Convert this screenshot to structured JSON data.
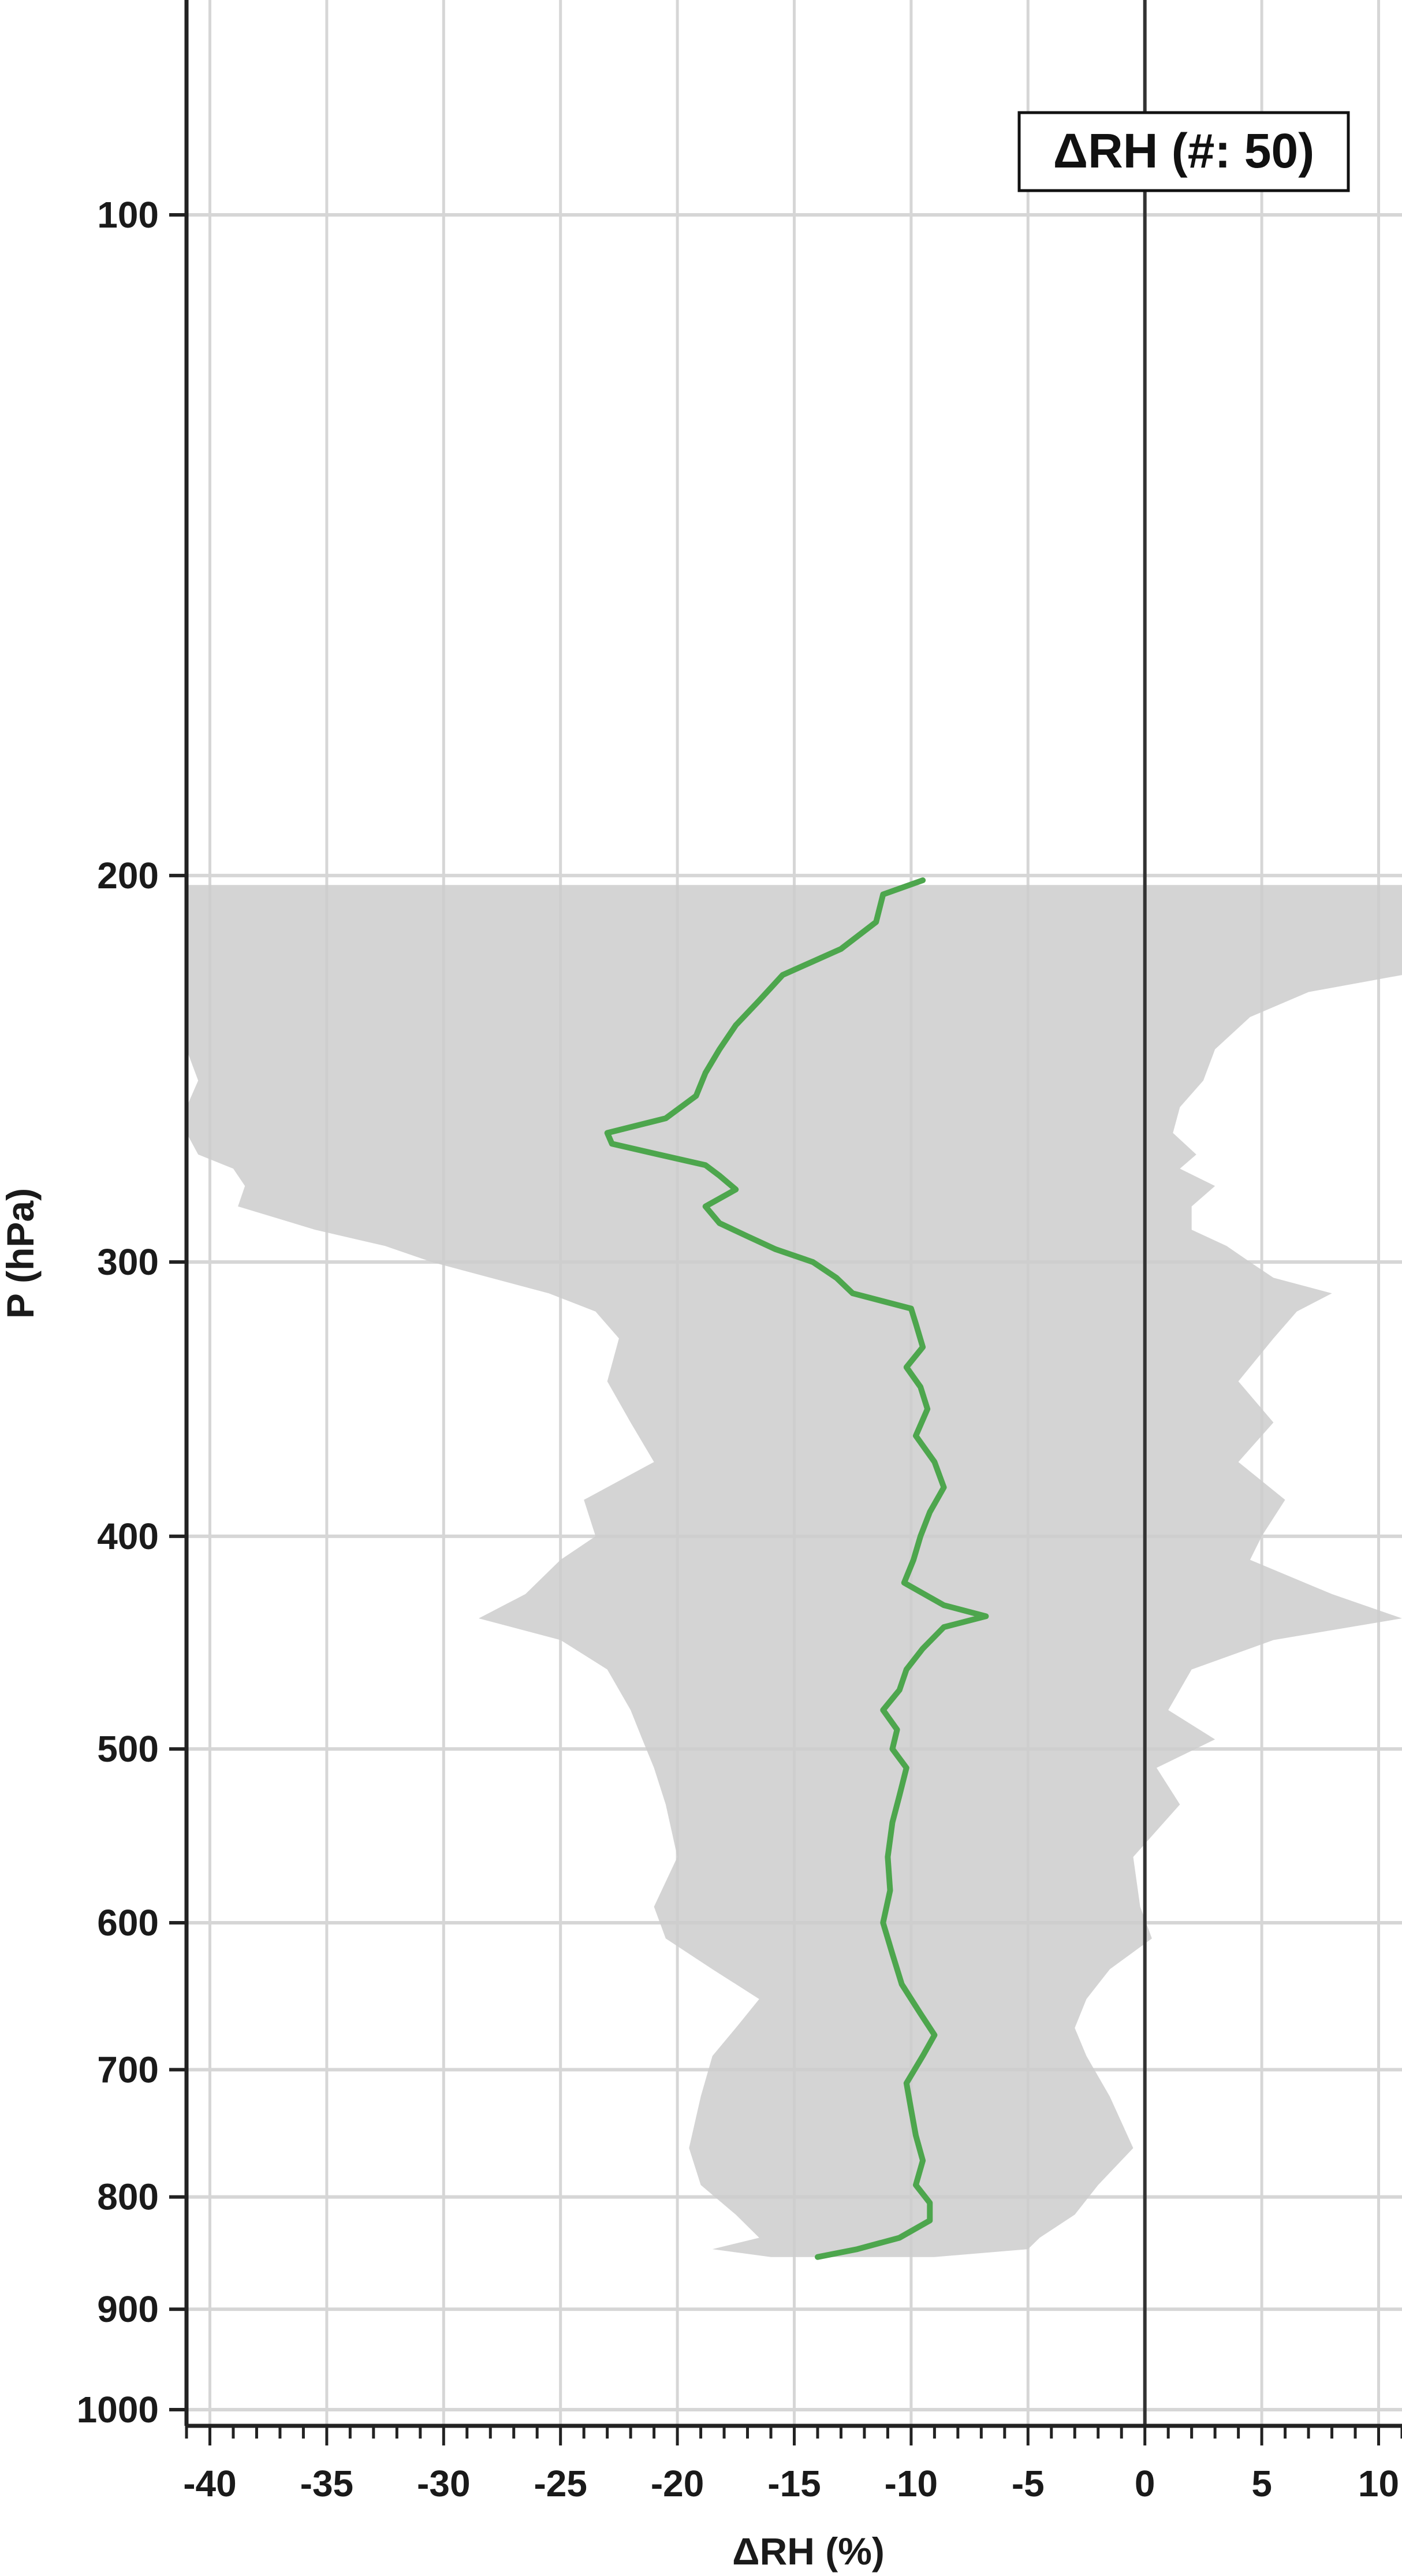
{
  "chart_data": {
    "type": "line",
    "title": "",
    "xlabel": "ΔRH (%)",
    "ylabel": "P (hPa)",
    "xlim": [
      -41,
      11
    ],
    "ylim": [
      60,
      1050
    ],
    "y_scale": "log",
    "y_inverted": true,
    "grid": true,
    "legend": {
      "label": "ΔRH (#: 50)",
      "placement": "top-right"
    },
    "x_ticks": [
      -40,
      -35,
      -30,
      -25,
      -20,
      -15,
      -10,
      -5,
      0,
      5,
      10
    ],
    "x_tick_labels": [
      "-40",
      "-35",
      "-30",
      "-25",
      "-20",
      "-15",
      "-10",
      "-5",
      "0",
      "5",
      "10"
    ],
    "y_ticks": [
      100,
      200,
      300,
      400,
      500,
      600,
      700,
      800,
      900,
      1000
    ],
    "y_tick_labels": [
      "100",
      "200",
      "300",
      "400",
      "500",
      "600",
      "700",
      "800",
      "900",
      "1000"
    ],
    "zero_line_x": 0,
    "colors": {
      "mean_line": "#4da64d",
      "spread_fill": "#cccccc",
      "grid": "#d6d6d6",
      "axis": "#222222"
    },
    "series": [
      {
        "role": "mean",
        "values": [
          {
            "p": 201,
            "v": -9.5
          },
          {
            "p": 204,
            "v": -11.2
          },
          {
            "p": 210,
            "v": -11.5
          },
          {
            "p": 216,
            "v": -13.0
          },
          {
            "p": 222,
            "v": -15.5
          },
          {
            "p": 228,
            "v": -16.5
          },
          {
            "p": 234,
            "v": -17.5
          },
          {
            "p": 240,
            "v": -18.2
          },
          {
            "p": 246,
            "v": -18.8
          },
          {
            "p": 252,
            "v": -19.2
          },
          {
            "p": 258,
            "v": -20.5
          },
          {
            "p": 262,
            "v": -23.0
          },
          {
            "p": 265,
            "v": -22.8
          },
          {
            "p": 268,
            "v": -20.8
          },
          {
            "p": 271,
            "v": -18.8
          },
          {
            "p": 274,
            "v": -18.2
          },
          {
            "p": 278,
            "v": -17.5
          },
          {
            "p": 283,
            "v": -18.8
          },
          {
            "p": 288,
            "v": -18.2
          },
          {
            "p": 292,
            "v": -17.0
          },
          {
            "p": 296,
            "v": -15.8
          },
          {
            "p": 300,
            "v": -14.2
          },
          {
            "p": 305,
            "v": -13.2
          },
          {
            "p": 310,
            "v": -12.5
          },
          {
            "p": 315,
            "v": -10.0
          },
          {
            "p": 320,
            "v": -9.8
          },
          {
            "p": 328,
            "v": -9.5
          },
          {
            "p": 335,
            "v": -10.2
          },
          {
            "p": 342,
            "v": -9.6
          },
          {
            "p": 350,
            "v": -9.3
          },
          {
            "p": 360,
            "v": -9.8
          },
          {
            "p": 370,
            "v": -9.0
          },
          {
            "p": 380,
            "v": -8.6
          },
          {
            "p": 390,
            "v": -9.2
          },
          {
            "p": 400,
            "v": -9.6
          },
          {
            "p": 410,
            "v": -9.9
          },
          {
            "p": 420,
            "v": -10.3
          },
          {
            "p": 430,
            "v": -8.6
          },
          {
            "p": 435,
            "v": -6.8
          },
          {
            "p": 440,
            "v": -8.6
          },
          {
            "p": 450,
            "v": -9.5
          },
          {
            "p": 460,
            "v": -10.2
          },
          {
            "p": 470,
            "v": -10.5
          },
          {
            "p": 480,
            "v": -11.2
          },
          {
            "p": 490,
            "v": -10.6
          },
          {
            "p": 500,
            "v": -10.8
          },
          {
            "p": 510,
            "v": -10.2
          },
          {
            "p": 525,
            "v": -10.5
          },
          {
            "p": 540,
            "v": -10.8
          },
          {
            "p": 560,
            "v": -11.0
          },
          {
            "p": 580,
            "v": -10.9
          },
          {
            "p": 600,
            "v": -11.2
          },
          {
            "p": 620,
            "v": -10.8
          },
          {
            "p": 640,
            "v": -10.4
          },
          {
            "p": 660,
            "v": -9.6
          },
          {
            "p": 675,
            "v": -9.0
          },
          {
            "p": 690,
            "v": -9.5
          },
          {
            "p": 710,
            "v": -10.2
          },
          {
            "p": 730,
            "v": -10.0
          },
          {
            "p": 750,
            "v": -9.8
          },
          {
            "p": 770,
            "v": -9.5
          },
          {
            "p": 790,
            "v": -9.8
          },
          {
            "p": 805,
            "v": -9.2
          },
          {
            "p": 820,
            "v": -9.2
          },
          {
            "p": 835,
            "v": -10.5
          },
          {
            "p": 845,
            "v": -12.3
          },
          {
            "p": 852,
            "v": -14.0
          }
        ]
      }
    ],
    "spread": [
      {
        "p": 202,
        "l": -41,
        "r": 11
      },
      {
        "p": 215,
        "l": -41,
        "r": 11
      },
      {
        "p": 222,
        "l": -41,
        "r": 11
      },
      {
        "p": 226,
        "l": -41,
        "r": 7.0
      },
      {
        "p": 232,
        "l": -41,
        "r": 4.5
      },
      {
        "p": 240,
        "l": -41,
        "r": 3.0
      },
      {
        "p": 248,
        "l": -40.5,
        "r": 2.5
      },
      {
        "p": 255,
        "l": -41,
        "r": 1.5
      },
      {
        "p": 262,
        "l": -41,
        "r": 1.2
      },
      {
        "p": 268,
        "l": -40.5,
        "r": 2.2
      },
      {
        "p": 272,
        "l": -39,
        "r": 1.5
      },
      {
        "p": 277,
        "l": -38.5,
        "r": 3.0
      },
      {
        "p": 283,
        "l": -38.8,
        "r": 2.0
      },
      {
        "p": 290,
        "l": -35.5,
        "r": 2.0
      },
      {
        "p": 295,
        "l": -32.5,
        "r": 3.5
      },
      {
        "p": 300,
        "l": -30.5,
        "r": 4.5
      },
      {
        "p": 305,
        "l": -28.0,
        "r": 5.5
      },
      {
        "p": 310,
        "l": -25.5,
        "r": 8.0
      },
      {
        "p": 316,
        "l": -23.5,
        "r": 6.5
      },
      {
        "p": 325,
        "l": -22.5,
        "r": 5.5
      },
      {
        "p": 340,
        "l": -23.0,
        "r": 4.0
      },
      {
        "p": 355,
        "l": -22.0,
        "r": 5.5
      },
      {
        "p": 370,
        "l": -21.0,
        "r": 4.0
      },
      {
        "p": 385,
        "l": -24.0,
        "r": 6.0
      },
      {
        "p": 400,
        "l": -23.5,
        "r": 5.0
      },
      {
        "p": 410,
        "l": -25.0,
        "r": 4.5
      },
      {
        "p": 425,
        "l": -26.5,
        "r": 8.0
      },
      {
        "p": 436,
        "l": -28.5,
        "r": 11.0
      },
      {
        "p": 446,
        "l": -25.0,
        "r": 5.5
      },
      {
        "p": 460,
        "l": -23.0,
        "r": 2.0
      },
      {
        "p": 480,
        "l": -22.0,
        "r": 1.0
      },
      {
        "p": 495,
        "l": -21.5,
        "r": 3.0
      },
      {
        "p": 510,
        "l": -21.0,
        "r": 0.5
      },
      {
        "p": 530,
        "l": -20.5,
        "r": 1.5
      },
      {
        "p": 560,
        "l": -20.0,
        "r": -0.5
      },
      {
        "p": 590,
        "l": -21.0,
        "r": -0.2
      },
      {
        "p": 610,
        "l": -20.5,
        "r": 0.3
      },
      {
        "p": 630,
        "l": -18.5,
        "r": -1.5
      },
      {
        "p": 650,
        "l": -16.5,
        "r": -2.5
      },
      {
        "p": 670,
        "l": -17.5,
        "r": -3.0
      },
      {
        "p": 690,
        "l": -18.5,
        "r": -2.5
      },
      {
        "p": 720,
        "l": -19.0,
        "r": -1.5
      },
      {
        "p": 760,
        "l": -19.5,
        "r": -0.5
      },
      {
        "p": 790,
        "l": -19.0,
        "r": -2.0
      },
      {
        "p": 815,
        "l": -17.5,
        "r": -3.0
      },
      {
        "p": 835,
        "l": -16.5,
        "r": -4.5
      },
      {
        "p": 845,
        "l": -18.5,
        "r": -5.0
      },
      {
        "p": 852,
        "l": -16.0,
        "r": -9.0
      }
    ]
  }
}
